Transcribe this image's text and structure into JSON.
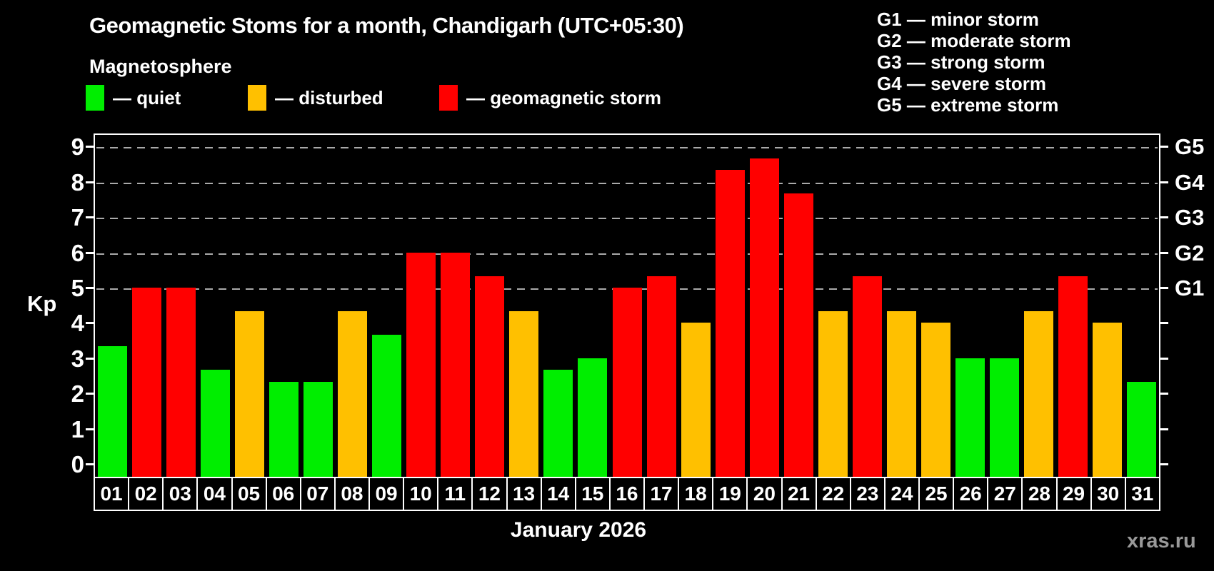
{
  "title": "Geomagnetic Stoms for a month, Chandigarh (UTC+05:30)",
  "subtitle": "Magnetosphere",
  "legend": {
    "quiet_label": "— quiet",
    "disturbed_label": "— disturbed",
    "storm_label": "— geomagnetic storm"
  },
  "colors": {
    "quiet": "#00ee00",
    "disturbed": "#ffc000",
    "storm": "#ff0000",
    "axis": "#ffffff",
    "grid": "#aaaaaa",
    "background": "#000000",
    "watermark": "#999999"
  },
  "g_legend": [
    "G1 — minor storm",
    "G2 — moderate storm",
    "G3 — strong storm",
    "G4 — severe storm",
    "G5 — extreme storm"
  ],
  "y_axis": {
    "label": "Kp",
    "ticks": [
      0,
      1,
      2,
      3,
      4,
      5,
      6,
      7,
      8,
      9
    ]
  },
  "right_axis": {
    "labels": [
      {
        "kp": 9,
        "label": "G5"
      },
      {
        "kp": 8,
        "label": "G4"
      },
      {
        "kp": 7,
        "label": "G3"
      },
      {
        "kp": 6,
        "label": "G2"
      },
      {
        "kp": 5,
        "label": "G1"
      }
    ]
  },
  "x_label": "January 2026",
  "watermark": "xras.ru",
  "chart_data": {
    "type": "bar",
    "title": "Geomagnetic Stoms for a month, Chandigarh (UTC+05:30)",
    "xlabel": "January 2026",
    "ylabel": "Kp",
    "ylim": [
      0,
      9.4
    ],
    "grid": "dashed horizontal at Kp 5-9 only",
    "legend_position": "top",
    "categories": [
      "01",
      "02",
      "03",
      "04",
      "05",
      "06",
      "07",
      "08",
      "09",
      "10",
      "11",
      "12",
      "13",
      "14",
      "15",
      "16",
      "17",
      "18",
      "19",
      "20",
      "21",
      "22",
      "23",
      "24",
      "25",
      "26",
      "27",
      "28",
      "29",
      "30",
      "31"
    ],
    "values": [
      3.33,
      5,
      5,
      2.67,
      4.33,
      2.33,
      2.33,
      4.33,
      3.67,
      6,
      6,
      5.33,
      4.33,
      2.67,
      3,
      5,
      5.33,
      4,
      8.33,
      8.67,
      7.67,
      4.33,
      5.33,
      4.33,
      4,
      3,
      3,
      4.33,
      5.33,
      4,
      2.33
    ],
    "statuses": [
      "quiet",
      "storm",
      "storm",
      "quiet",
      "disturbed",
      "quiet",
      "quiet",
      "disturbed",
      "quiet",
      "storm",
      "storm",
      "storm",
      "disturbed",
      "quiet",
      "quiet",
      "storm",
      "storm",
      "disturbed",
      "storm",
      "storm",
      "storm",
      "disturbed",
      "storm",
      "disturbed",
      "disturbed",
      "quiet",
      "quiet",
      "disturbed",
      "storm",
      "disturbed",
      "quiet"
    ],
    "gridlines_at": [
      5,
      6,
      7,
      8,
      9
    ]
  }
}
